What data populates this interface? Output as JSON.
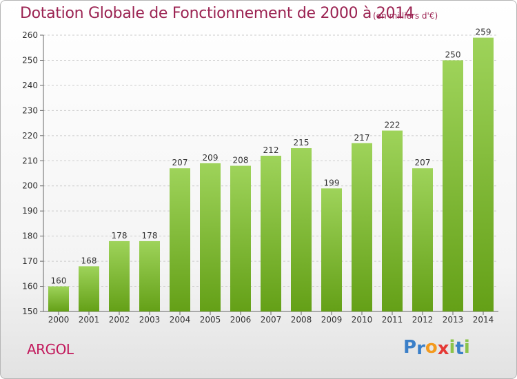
{
  "title": "Dotation Globale de Fonctionnement de 2000 à 2014",
  "subtitle": "(en milliers d'€)",
  "commune": "ARGOL",
  "logo": {
    "letters": [
      "P",
      "r",
      "o",
      "x",
      "i",
      "t",
      "i"
    ],
    "colors": [
      "#3a7fc8",
      "#3a7fc8",
      "#f39a1e",
      "#e53935",
      "#8bc34a",
      "#3a7fc8",
      "#8bc34a"
    ]
  },
  "colors": {
    "bar_top": "#9ed35a",
    "bar_bottom": "#64a017",
    "title": "#9b2352",
    "grid": "#cccccc"
  },
  "chart_data": {
    "type": "bar",
    "categories": [
      "2000",
      "2001",
      "2002",
      "2003",
      "2004",
      "2005",
      "2006",
      "2007",
      "2008",
      "2009",
      "2010",
      "2011",
      "2012",
      "2013",
      "2014"
    ],
    "values": [
      160,
      168,
      178,
      178,
      207,
      209,
      208,
      212,
      215,
      199,
      217,
      222,
      207,
      250,
      259
    ],
    "data_labels": [
      "160",
      "168",
      "178",
      "178",
      "207",
      "209",
      "208",
      "212",
      "215",
      "199",
      "217",
      "222",
      "207",
      "250",
      "259"
    ],
    "yticks": [
      "150",
      "160",
      "170",
      "180",
      "190",
      "200",
      "210",
      "220",
      "230",
      "240",
      "250",
      "260"
    ],
    "ylim": [
      150,
      260
    ],
    "grid": true
  }
}
